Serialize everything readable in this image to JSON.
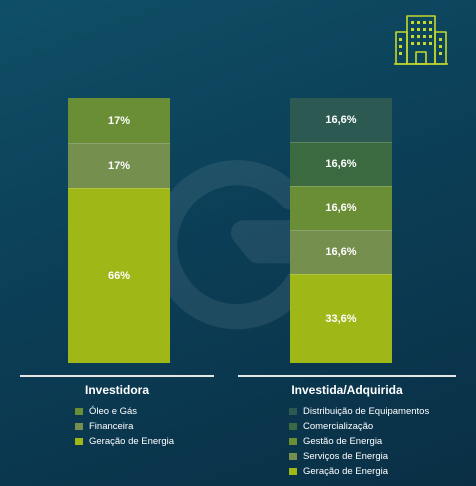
{
  "chart_data": [
    {
      "type": "bar",
      "stacked": true,
      "categories": [
        "Investidora"
      ],
      "series": [
        {
          "name": "Óleo e Gás",
          "values": [
            17
          ],
          "label": "17%",
          "color": "#6a8e35"
        },
        {
          "name": "Financeira",
          "values": [
            17
          ],
          "label": "17%",
          "color": "#758f4f"
        },
        {
          "name": "Geração de Energia",
          "values": [
            66
          ],
          "label": "66%",
          "color": "#9fb717"
        }
      ],
      "ylim": [
        0,
        100
      ],
      "legend": "bottom"
    },
    {
      "type": "bar",
      "stacked": true,
      "categories": [
        "Investida/Adquirida"
      ],
      "series": [
        {
          "name": "Distribuição de Equipamentos",
          "values": [
            16.6
          ],
          "label": "16,6%",
          "color": "#2c5a52"
        },
        {
          "name": "Comercialização",
          "values": [
            16.6
          ],
          "label": "16,6%",
          "color": "#3c6a40"
        },
        {
          "name": "Gestão de Energia",
          "values": [
            16.6
          ],
          "label": "16,6%",
          "color": "#6a8e35"
        },
        {
          "name": "Serviços de Energia",
          "values": [
            16.6
          ],
          "label": "16,6%",
          "color": "#758f4f"
        },
        {
          "name": "Geração de Energia",
          "values": [
            33.6
          ],
          "label": "33,6%",
          "color": "#9fb717"
        }
      ],
      "ylim": [
        0,
        100
      ],
      "legend": "bottom"
    }
  ],
  "icons": {
    "decor": "building-icon",
    "watermark": "logo-watermark"
  },
  "accent_color": "#c5d92a"
}
